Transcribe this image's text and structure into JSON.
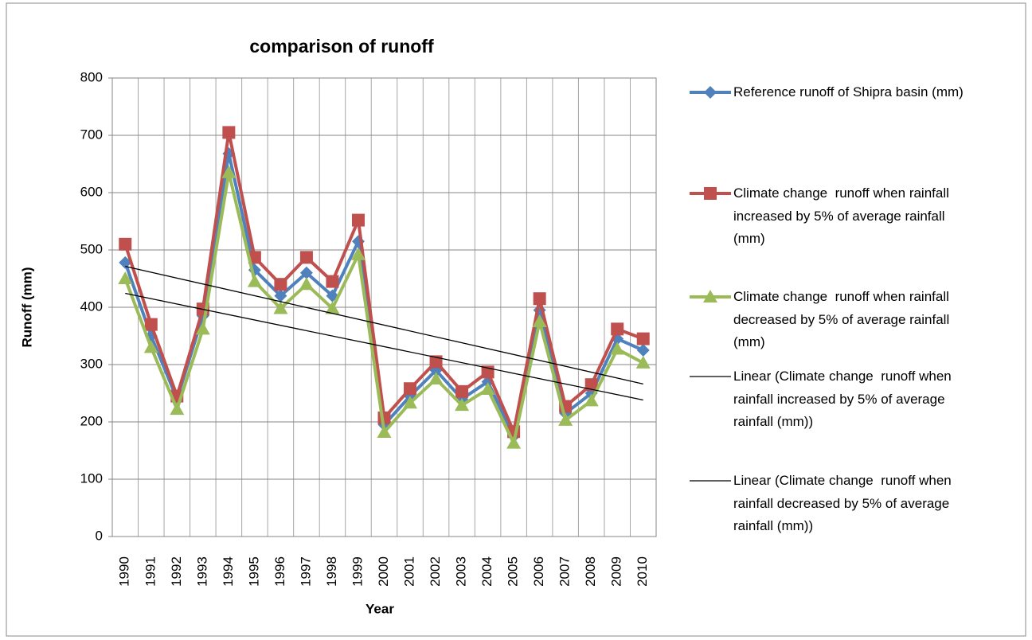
{
  "chart_data": {
    "type": "line",
    "title": "comparison of runoff",
    "x_label": "Year",
    "y_label": "Runoff (mm)",
    "categories": [
      "1990",
      "1991",
      "1992",
      "1993",
      "1994",
      "1995",
      "1996",
      "1997",
      "1998",
      "1999",
      "2000",
      "2001",
      "2002",
      "2003",
      "2004",
      "2005",
      "2006",
      "2007",
      "2008",
      "2009",
      "2010"
    ],
    "ylim": [
      0,
      800
    ],
    "yticks": [
      0,
      100,
      200,
      300,
      400,
      500,
      600,
      700,
      800
    ],
    "grid": true,
    "legend": "right",
    "series": [
      {
        "name": "Reference runoff of Shipra basin (mm)",
        "color": "#4f81bd",
        "marker": "diamond",
        "values": [
          478,
          350,
          240,
          385,
          668,
          465,
          420,
          460,
          420,
          515,
          195,
          245,
          290,
          240,
          270,
          175,
          395,
          215,
          250,
          345,
          325
        ]
      },
      {
        "name": "Climate change  runoff when rainfall increased by 5% of average rainfall (mm)",
        "color": "#c0504d",
        "marker": "square",
        "values": [
          510,
          370,
          245,
          397,
          705,
          487,
          440,
          487,
          445,
          552,
          207,
          258,
          305,
          253,
          287,
          183,
          415,
          227,
          265,
          362,
          345
        ],
        "trendline": {
          "type": "linear",
          "name": "Linear (Climate change  runoff when rainfall increased by 5% of average rainfall (mm))",
          "color": "#000000"
        }
      },
      {
        "name": "Climate change  runoff when rainfall decreased by 5% of average rainfall (mm)",
        "color": "#9bbb59",
        "marker": "triangle",
        "values": [
          450,
          330,
          222,
          362,
          635,
          445,
          398,
          440,
          398,
          492,
          182,
          233,
          275,
          229,
          257,
          163,
          375,
          203,
          237,
          327,
          303
        ],
        "trendline": {
          "type": "linear",
          "name": "Linear (Climate change  runoff when rainfall decreased by 5% of average rainfall (mm))",
          "color": "#000000"
        }
      }
    ]
  }
}
